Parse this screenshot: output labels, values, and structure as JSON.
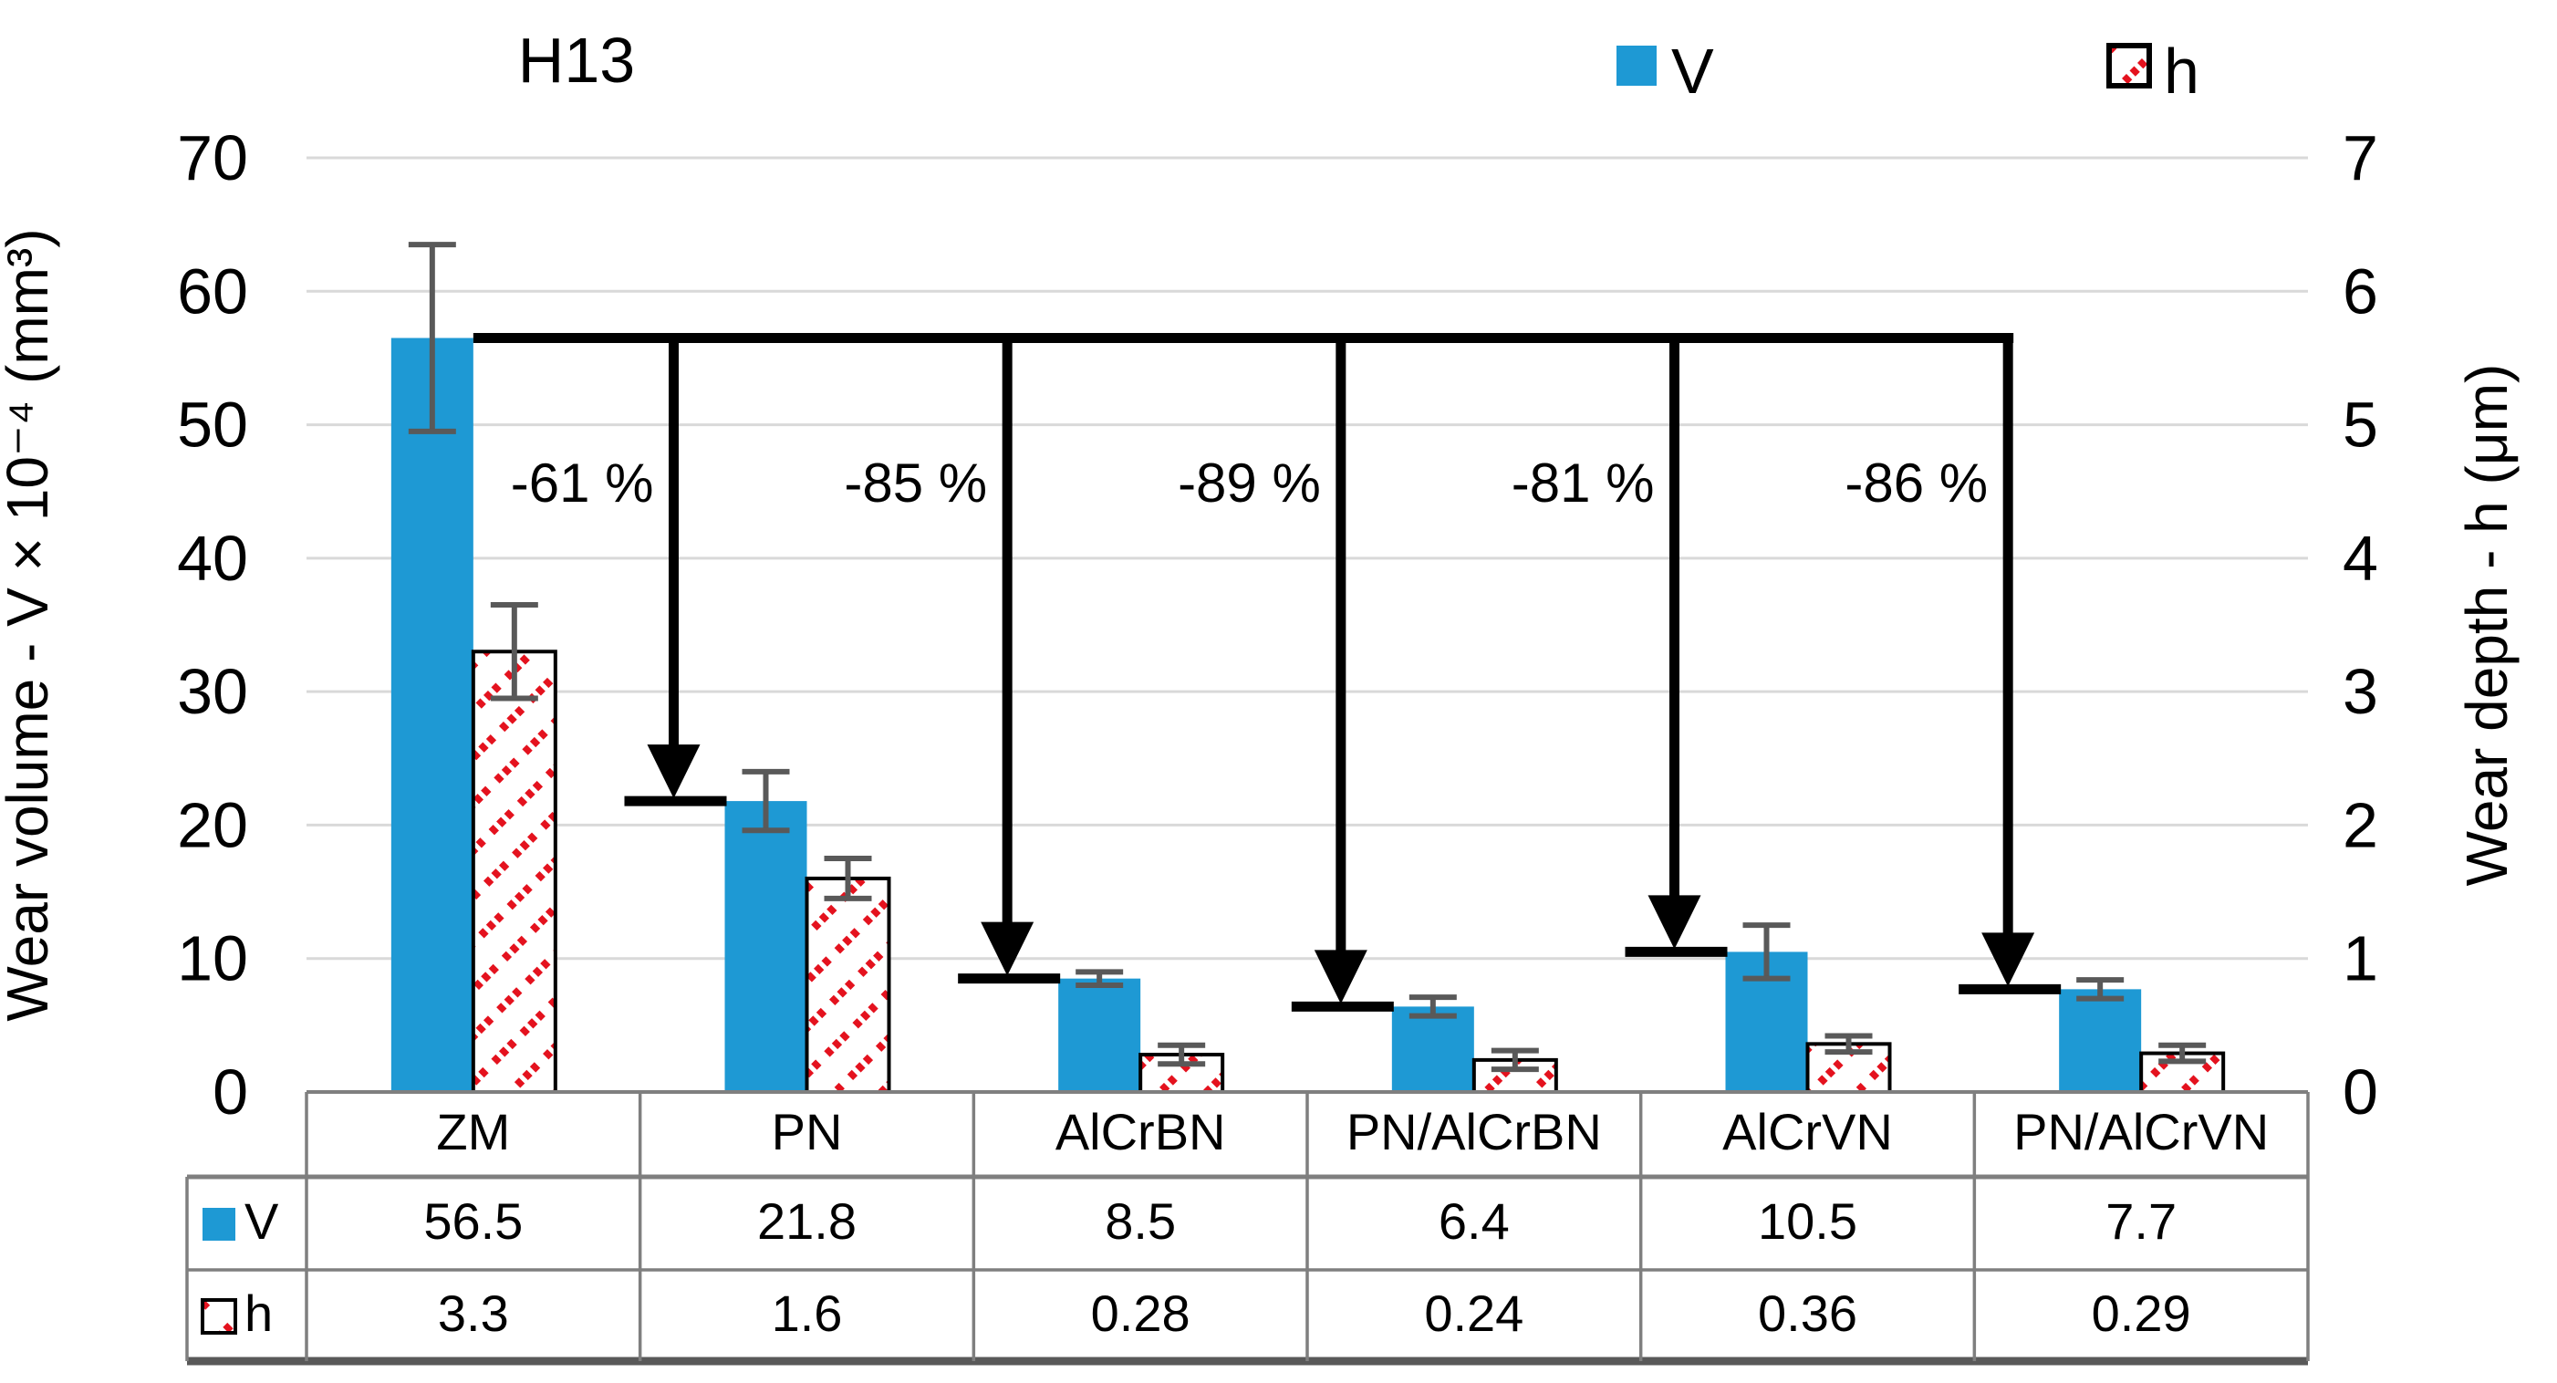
{
  "figure": {
    "title": "H13",
    "legend": {
      "items": [
        {
          "label": "V",
          "swatch": "blue-solid-square"
        },
        {
          "label": "h",
          "swatch": "red-hatched-square"
        }
      ]
    },
    "left_axis": {
      "title": "Wear volume - V × 10⁻⁴ (mm³)",
      "ticks": [
        "70",
        "60",
        "50",
        "40",
        "30",
        "20",
        "10",
        "0"
      ],
      "min": 0,
      "max": 70
    },
    "right_axis": {
      "title": "Wear depth - h (μm)",
      "ticks": [
        "7",
        "6",
        "5",
        "4",
        "3",
        "2",
        "1",
        "0"
      ],
      "min": 0,
      "max": 7
    },
    "colors": {
      "bar_blue": "#1E99D4",
      "hatch_red": "#E4121E",
      "error_bar_gray": "#595959",
      "gridline_gray": "#D9D9D9",
      "table_border_gray": "#7F7F7F",
      "table_bottom_dark": "#595959",
      "annotation_black": "#000000"
    }
  },
  "chart_data": {
    "type": "bar",
    "title": "H13",
    "categories": [
      "ZM",
      "PN",
      "AlCrBN",
      "PN/AlCrBN",
      "AlCrVN",
      "PN/AlCrVN"
    ],
    "series": [
      {
        "name": "V",
        "axis": "left",
        "unit": "×10⁻⁴ mm³",
        "values": [
          56.5,
          21.8,
          8.5,
          6.4,
          10.5,
          7.7
        ],
        "error_bars": [
          7.0,
          2.2,
          0.5,
          0.7,
          2.0,
          0.7
        ],
        "style": "solid-blue"
      },
      {
        "name": "h",
        "axis": "right",
        "unit": "μm",
        "values": [
          3.3,
          1.6,
          0.28,
          0.24,
          0.36,
          0.29
        ],
        "error_bars": [
          0.35,
          0.15,
          0.07,
          0.07,
          0.06,
          0.06
        ],
        "style": "red-hatch-white"
      }
    ],
    "ylabel_left": "Wear volume - V × 10⁻⁴ (mm³)",
    "ylabel_right": "Wear depth - h (μm)",
    "ylim_left": [
      0,
      70
    ],
    "ylim_right": [
      0,
      7
    ],
    "grid": "horizontal",
    "legend_position": "top",
    "annotations": {
      "reference_series": "V",
      "reference_category": "ZM",
      "reference_value": 56.5,
      "arrows_from_reference_to": [
        "PN",
        "AlCrBN",
        "PN/AlCrBN",
        "AlCrVN",
        "PN/AlCrVN"
      ],
      "percent_labels": [
        "-61 %",
        "-85 %",
        "-89 %",
        "-81 %",
        "-86 %"
      ]
    }
  },
  "data_table": {
    "column_headers": [
      "ZM",
      "PN",
      "AlCrBN",
      "PN/AlCrBN",
      "AlCrVN",
      "PN/AlCrVN"
    ],
    "rows": [
      {
        "header": "V",
        "values": [
          "56.5",
          "21.8",
          "8.5",
          "6.4",
          "10.5",
          "7.7"
        ]
      },
      {
        "header": "h",
        "values": [
          "3.3",
          "1.6",
          "0.28",
          "0.24",
          "0.36",
          "0.29"
        ]
      }
    ]
  }
}
